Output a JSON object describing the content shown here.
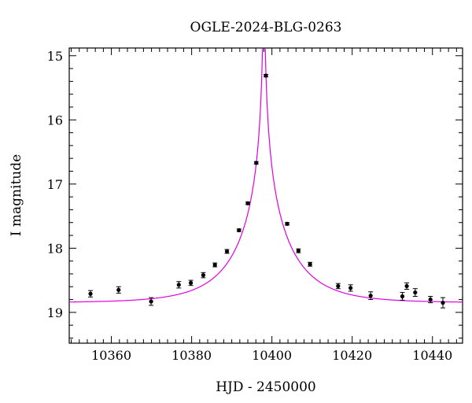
{
  "chart_data": {
    "type": "scatter",
    "title": "OGLE-2024-BLG-0263",
    "xlabel": "HJD - 2450000",
    "ylabel": "I magnitude",
    "xlim": [
      10349.5,
      10447.5
    ],
    "ylim": [
      19.48,
      14.88
    ],
    "y_inverted": true,
    "grid": false,
    "x_ticks": [
      10360,
      10380,
      10400,
      10420,
      10440
    ],
    "x_tick_labels": [
      "10360",
      "10380",
      "10400",
      "10420",
      "10440"
    ],
    "x_minor_step": 2,
    "y_ticks": [
      15,
      16,
      17,
      18,
      19
    ],
    "y_tick_labels": [
      "15",
      "16",
      "17",
      "18",
      "19"
    ],
    "y_minor_step": 0.2,
    "series": [
      {
        "kind": "points",
        "color": "#000000",
        "points": [
          {
            "x": 10354.8,
            "y": 18.71,
            "err": 0.05
          },
          {
            "x": 10361.8,
            "y": 18.65,
            "err": 0.05
          },
          {
            "x": 10369.9,
            "y": 18.83,
            "err": 0.06
          },
          {
            "x": 10376.8,
            "y": 18.57,
            "err": 0.05
          },
          {
            "x": 10379.8,
            "y": 18.54,
            "err": 0.04
          },
          {
            "x": 10382.9,
            "y": 18.42,
            "err": 0.04
          },
          {
            "x": 10385.8,
            "y": 18.26,
            "err": 0.03
          },
          {
            "x": 10388.8,
            "y": 18.05,
            "err": 0.03
          },
          {
            "x": 10391.8,
            "y": 17.72,
            "err": 0.02
          },
          {
            "x": 10394.0,
            "y": 17.3,
            "err": 0.02
          },
          {
            "x": 10396.1,
            "y": 16.67,
            "err": 0.02
          },
          {
            "x": 10398.5,
            "y": 15.31,
            "err": 0.02
          },
          {
            "x": 10403.8,
            "y": 17.62,
            "err": 0.02
          },
          {
            "x": 10406.6,
            "y": 18.04,
            "err": 0.03
          },
          {
            "x": 10409.5,
            "y": 18.25,
            "err": 0.03
          },
          {
            "x": 10416.5,
            "y": 18.59,
            "err": 0.04
          },
          {
            "x": 10419.6,
            "y": 18.62,
            "err": 0.05
          },
          {
            "x": 10424.6,
            "y": 18.74,
            "err": 0.06
          },
          {
            "x": 10432.5,
            "y": 18.75,
            "err": 0.06
          },
          {
            "x": 10433.6,
            "y": 18.59,
            "err": 0.05
          },
          {
            "x": 10435.7,
            "y": 18.69,
            "err": 0.06
          },
          {
            "x": 10439.5,
            "y": 18.8,
            "err": 0.05
          },
          {
            "x": 10442.6,
            "y": 18.85,
            "err": 0.08
          }
        ]
      },
      {
        "kind": "model_curve",
        "color": "#e000e0",
        "model": {
          "baseline_mag": 18.85,
          "t0": 10398.0,
          "tE": 14.0,
          "u0": 0.008
        }
      }
    ]
  }
}
